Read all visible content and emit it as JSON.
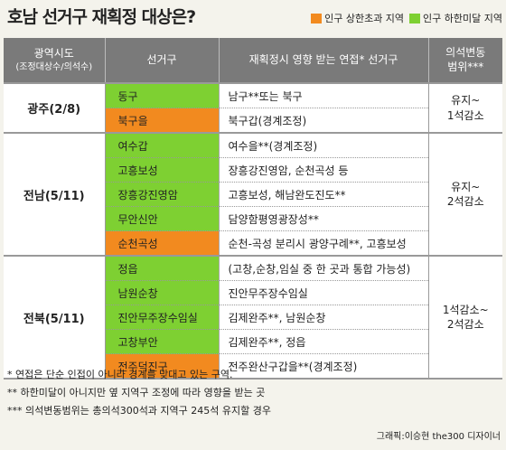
{
  "title": "호남 선거구 재획정 대상은?",
  "legend": [
    {
      "label": "인구 상한초과 지역",
      "color": "#f28a1f"
    },
    {
      "label": "인구 하한미달 지역",
      "color": "#7ed032"
    }
  ],
  "columns": {
    "region": "광역시도",
    "region_sub": "(조정대상수/의석수)",
    "district": "선거구",
    "effect": "재획정시 영향 받는 연접* 선거구",
    "range_line1": "의석변동",
    "range_line2": "범위***"
  },
  "colors": {
    "over": "#f28a1f",
    "under": "#7ed032",
    "header": "#7a7a7a"
  },
  "groups": [
    {
      "region": "광주(2/8)",
      "range": [
        "유지~",
        "1석감소"
      ],
      "rows": [
        {
          "district": "동구",
          "status": "under",
          "effect": "남구**또는 북구"
        },
        {
          "district": "북구을",
          "status": "over",
          "effect": "북구갑(경계조정)"
        }
      ]
    },
    {
      "region": "전남(5/11)",
      "range": [
        "유지~",
        "2석감소"
      ],
      "rows": [
        {
          "district": "여수갑",
          "status": "under",
          "effect": "여수을**(경계조정)"
        },
        {
          "district": "고흥보성",
          "status": "under",
          "effect": "장흥강진영암, 순천곡성 등"
        },
        {
          "district": "장흥강진영암",
          "status": "under",
          "effect": "고흥보성, 해남완도진도**"
        },
        {
          "district": "무안신안",
          "status": "under",
          "effect": "담양함평영광장성**"
        },
        {
          "district": "순천곡성",
          "status": "over",
          "effect": "순천-곡성 분리시 광양구례**, 고흥보성"
        }
      ]
    },
    {
      "region": "전북(5/11)",
      "range": [
        "1석감소~",
        "2석감소"
      ],
      "rows": [
        {
          "district": "정읍",
          "status": "under",
          "effect": "(고창,순창,임실 중 한 곳과 통합 가능성)"
        },
        {
          "district": "남원순창",
          "status": "under",
          "effect": "진안무주장수임실"
        },
        {
          "district": "진안무주장수임실",
          "status": "under",
          "effect": "김제완주**, 남원순창"
        },
        {
          "district": "고창부안",
          "status": "under",
          "effect": "김제완주**, 정읍"
        },
        {
          "district": "전주덕진구",
          "status": "over",
          "effect": "전주완산구갑을**(경계조정)"
        }
      ]
    }
  ],
  "notes": [
    "* 연접은 단순 인접이 아니라 경계를 맞대고 있는 구역.",
    "** 하한미달이 아니지만 옆 지역구 조정에 따라 영향을 받는 곳",
    "*** 의석변동범위는 총의석300석과 지역구 245석 유지할 경우"
  ],
  "credit": "그래픽:이승현 the300 디자이너"
}
